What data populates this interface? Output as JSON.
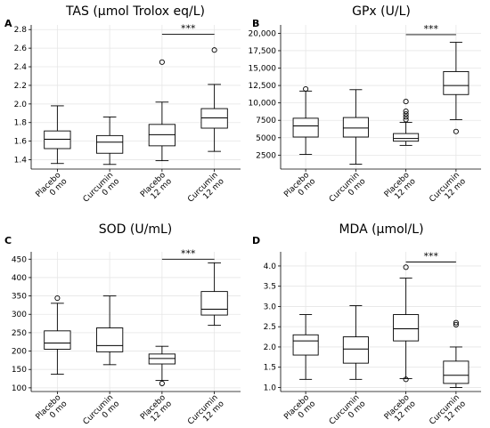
{
  "chart_data": [
    {
      "type": "box",
      "letter": "A",
      "title": "TAS (μmol Trolox eq/L)",
      "categories": [
        "Placebo\n0 mo",
        "Curcumin\n0 mo",
        "Placebo\n12 mo",
        "Curcumin\n12 mo"
      ],
      "ylim": [
        1.3,
        2.85
      ],
      "yticks": [
        1.4,
        1.6,
        1.8,
        2.0,
        2.2,
        2.4,
        2.6,
        2.8
      ],
      "ytick_labels": [
        "1.4",
        "1.6",
        "1.8",
        "2.0",
        "2.2",
        "2.4",
        "2.6",
        "2.8"
      ],
      "boxes": [
        {
          "whislo": 1.36,
          "q1": 1.52,
          "med": 1.62,
          "q3": 1.71,
          "whishi": 1.98,
          "fliers": []
        },
        {
          "whislo": 1.35,
          "q1": 1.47,
          "med": 1.59,
          "q3": 1.66,
          "whishi": 1.86,
          "fliers": []
        },
        {
          "whislo": 1.39,
          "q1": 1.55,
          "med": 1.67,
          "q3": 1.78,
          "whishi": 2.02,
          "fliers": [
            2.45
          ]
        },
        {
          "whislo": 1.49,
          "q1": 1.74,
          "med": 1.85,
          "q3": 1.95,
          "whishi": 2.21,
          "fliers": [
            2.58
          ]
        }
      ],
      "significance": {
        "from": 2,
        "to": 3,
        "y": 2.75,
        "label": "***"
      },
      "grid": true
    },
    {
      "type": "box",
      "letter": "B",
      "title": "GPx (U/L)",
      "categories": [
        "Placebo\n0 mo",
        "Curcumin\n0 mo",
        "Placebo\n12 mo",
        "Curcumin\n12 mo"
      ],
      "ylim": [
        500,
        21200
      ],
      "yticks": [
        2500,
        5000,
        7500,
        10000,
        12500,
        15000,
        17500,
        20000
      ],
      "ytick_labels": [
        "2500",
        "5000",
        "7500",
        "10,000",
        "12,500",
        "15,000",
        "17,500",
        "20,000"
      ],
      "boxes": [
        {
          "whislo": 2600,
          "q1": 5100,
          "med": 6700,
          "q3": 7800,
          "whishi": 11700,
          "fliers": [
            12000
          ]
        },
        {
          "whislo": 1200,
          "q1": 5100,
          "med": 6400,
          "q3": 7900,
          "whishi": 11900,
          "fliers": []
        },
        {
          "whislo": 3900,
          "q1": 4500,
          "med": 4900,
          "q3": 5600,
          "whishi": 7200,
          "fliers": [
            7600,
            8000,
            8400,
            8800,
            10200
          ]
        },
        {
          "whislo": 7600,
          "q1": 11200,
          "med": 12500,
          "q3": 14500,
          "whishi": 18700,
          "fliers": [
            5900
          ]
        }
      ],
      "significance": {
        "from": 2,
        "to": 3,
        "y": 19800,
        "label": "***"
      },
      "grid": true
    },
    {
      "type": "box",
      "letter": "C",
      "title": "SOD (U/mL)",
      "categories": [
        "Placebo\n0 mo",
        "Curcumin\n0 mo",
        "Placebo\n12 mo",
        "Curcumin\n12 mo"
      ],
      "ylim": [
        90,
        470
      ],
      "yticks": [
        100,
        150,
        200,
        250,
        300,
        350,
        400,
        450
      ],
      "ytick_labels": [
        "100",
        "150",
        "200",
        "250",
        "300",
        "350",
        "400",
        "450"
      ],
      "boxes": [
        {
          "whislo": 137,
          "q1": 205,
          "med": 222,
          "q3": 255,
          "whishi": 330,
          "fliers": [
            344
          ]
        },
        {
          "whislo": 163,
          "q1": 198,
          "med": 215,
          "q3": 263,
          "whishi": 350,
          "fliers": []
        },
        {
          "whislo": 120,
          "q1": 165,
          "med": 180,
          "q3": 192,
          "whishi": 213,
          "fliers": [
            112
          ]
        },
        {
          "whislo": 270,
          "q1": 298,
          "med": 314,
          "q3": 362,
          "whishi": 440,
          "fliers": []
        }
      ],
      "significance": {
        "from": 2,
        "to": 3,
        "y": 450,
        "label": "***"
      },
      "grid": true
    },
    {
      "type": "box",
      "letter": "D",
      "title": "MDA (μmol/L)",
      "categories": [
        "Placebo\n0 mo",
        "Curcumin\n0 mo",
        "Placebo\n12 mo",
        "Curcumin\n12 mo"
      ],
      "ylim": [
        0.9,
        4.35
      ],
      "yticks": [
        1.0,
        1.5,
        2.0,
        2.5,
        3.0,
        3.5,
        4.0
      ],
      "ytick_labels": [
        "1.0",
        "1.5",
        "2.0",
        "2.5",
        "3.0",
        "3.5",
        "4.0"
      ],
      "boxes": [
        {
          "whislo": 1.2,
          "q1": 1.8,
          "med": 2.15,
          "q3": 2.3,
          "whishi": 2.8,
          "fliers": []
        },
        {
          "whislo": 1.2,
          "q1": 1.6,
          "med": 1.95,
          "q3": 2.25,
          "whishi": 3.02,
          "fliers": []
        },
        {
          "whislo": 1.22,
          "q1": 2.15,
          "med": 2.45,
          "q3": 2.8,
          "whishi": 3.7,
          "fliers": [
            3.97,
            1.2
          ]
        },
        {
          "whislo": 1.0,
          "q1": 1.1,
          "med": 1.3,
          "q3": 1.65,
          "whishi": 2.0,
          "fliers": [
            2.55,
            2.6
          ]
        }
      ],
      "significance": {
        "from": 2,
        "to": 3,
        "y": 4.1,
        "label": "***"
      },
      "grid": true
    }
  ]
}
